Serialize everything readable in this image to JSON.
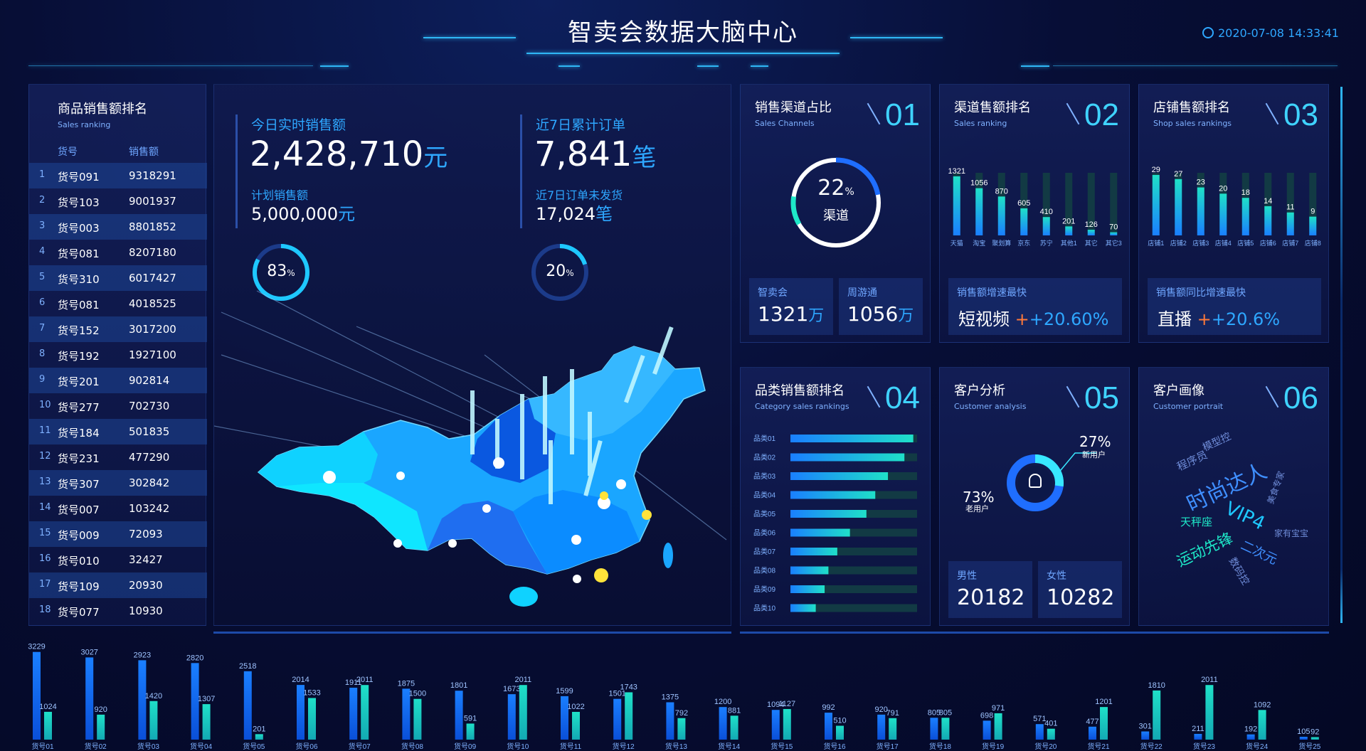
{
  "header": {
    "title": "智卖会数据大脑中心",
    "datetime": "2020-07-08 14:33:41"
  },
  "rank_panel": {
    "title": "商品销售额排名",
    "subtitle": "Sales ranking",
    "col1": "货号",
    "col2": "销售额",
    "rows": [
      [
        "1",
        "货号091",
        "9318291"
      ],
      [
        "2",
        "货号103",
        "9001937"
      ],
      [
        "3",
        "货号003",
        "8801852"
      ],
      [
        "4",
        "货号081",
        "8207180"
      ],
      [
        "5",
        "货号310",
        "6017427"
      ],
      [
        "6",
        "货号081",
        "4018525"
      ],
      [
        "7",
        "货号152",
        "3017200"
      ],
      [
        "8",
        "货号192",
        "1927100"
      ],
      [
        "9",
        "货号201",
        "902814"
      ],
      [
        "10",
        "货号277",
        "702730"
      ],
      [
        "11",
        "货号184",
        "501835"
      ],
      [
        "12",
        "货号231",
        "477290"
      ],
      [
        "13",
        "货号307",
        "302842"
      ],
      [
        "14",
        "货号007",
        "103242"
      ],
      [
        "15",
        "货号009",
        "72093"
      ],
      [
        "16",
        "货号010",
        "32427"
      ],
      [
        "17",
        "货号109",
        "20930"
      ],
      [
        "18",
        "货号077",
        "10930"
      ]
    ]
  },
  "center": {
    "today_label": "今日实时销售额",
    "today_value": "2,428,710",
    "unit_yuan": "元",
    "plan_label": "计划销售额",
    "plan_value": "5,000,000",
    "week_label": "近7日累计订单",
    "week_value": "7,841",
    "unit_bi": "笔",
    "unshipped_label": "近7日订单未发货",
    "unshipped_value": "17,024",
    "gauge1": "83",
    "gauge2": "20",
    "pct": "%",
    "gauge1_value": 0.83,
    "gauge2_value": 0.2
  },
  "p1": {
    "title": "销售渠道占比",
    "subtitle": "Sales Channels",
    "num": "01",
    "ring_pct": "22",
    "ring_label": "渠道",
    "ring_value": 0.22,
    "a_label": "智卖会",
    "a_value": "1321",
    "b_label": "周游通",
    "b_value": "1056",
    "unit_wan": "万"
  },
  "p2": {
    "title": "渠道售额排名",
    "subtitle": "Sales ranking",
    "num": "02",
    "chart": {
      "type": "bar",
      "categories": [
        "天猫",
        "淘宝",
        "聚划算",
        "京东",
        "苏宁",
        "其他1",
        "其它",
        "其它3"
      ],
      "values": [
        1321,
        1056,
        870,
        605,
        410,
        201,
        126,
        70
      ],
      "ylim": [
        0,
        1400
      ]
    },
    "note": "销售额增速最快",
    "channel": "短视频",
    "growth": "+20.60%"
  },
  "p3": {
    "title": "店铺售额排名",
    "subtitle": "Shop sales rankings",
    "num": "03",
    "chart": {
      "type": "bar",
      "categories": [
        "店铺1",
        "店铺2",
        "店铺3",
        "店铺4",
        "店铺5",
        "店铺6",
        "店铺7",
        "店铺8"
      ],
      "values": [
        29,
        27,
        23,
        20,
        18,
        14,
        11,
        9
      ],
      "ylim": [
        0,
        30
      ]
    },
    "note": "销售额同比增速最快",
    "channel": "直播",
    "growth": "+20.6%"
  },
  "p4": {
    "title": "品类销售额排名",
    "subtitle": "Category sales rankings",
    "num": "04",
    "chart": {
      "type": "bar",
      "categories": [
        "品类01",
        "品类02",
        "品类03",
        "品类04",
        "品类05",
        "品类06",
        "品类07",
        "品类08",
        "品类09",
        "品类10"
      ],
      "values": [
        97,
        90,
        77,
        67,
        60,
        47,
        37,
        30,
        27,
        20
      ],
      "ylim": [
        0,
        100
      ]
    }
  },
  "p5": {
    "title": "客户分析",
    "subtitle": "Customer analysis",
    "num": "05",
    "new_pct": "27%",
    "new_label": "新用户",
    "old_pct": "73%",
    "old_label": "老用户",
    "new_value": 0.27,
    "male_label": "男性",
    "male_value": "20182",
    "female_label": "女性",
    "female_value": "10282"
  },
  "p6": {
    "title": "客户画像",
    "subtitle": "Customer portrait",
    "num": "06",
    "words": [
      "模型控",
      "程序员",
      "时尚达人",
      "美食专家",
      "天秤座",
      "VIP4",
      "家有宝宝",
      "运动先锋",
      "二次元",
      "数码控"
    ]
  },
  "bottom_chart": {
    "type": "bar",
    "categories": [
      "货号01",
      "货号02",
      "货号03",
      "货号04",
      "货号05",
      "货号06",
      "货号07",
      "货号08",
      "货号09",
      "货号10",
      "货号11",
      "货号12",
      "货号13",
      "货号14",
      "货号15",
      "货号16",
      "货号17",
      "货号18",
      "货号19",
      "货号20",
      "货号21",
      "货号22",
      "货号23",
      "货号24",
      "货号25"
    ],
    "series": [
      {
        "values": [
          3229,
          3027,
          2923,
          2820,
          2518,
          2014,
          1911,
          1875,
          1801,
          1673,
          1599,
          1501,
          1375,
          1200,
          1094,
          992,
          920,
          805,
          698,
          571,
          477,
          301,
          211,
          192,
          105
        ]
      },
      {
        "values": [
          1024,
          920,
          1420,
          1307,
          201,
          1533,
          2011,
          1500,
          591,
          2011,
          1022,
          1743,
          792,
          881,
          1127,
          510,
          791,
          805,
          971,
          401,
          1201,
          1810,
          2011,
          1092,
          92
        ]
      }
    ],
    "ylim": [
      0,
      3300
    ]
  },
  "colors": {
    "accent": "#3fd3ff",
    "orange": "#ff7a3a",
    "bar_top": "#1fe0c8",
    "bar_blue": "#1a7fff"
  }
}
